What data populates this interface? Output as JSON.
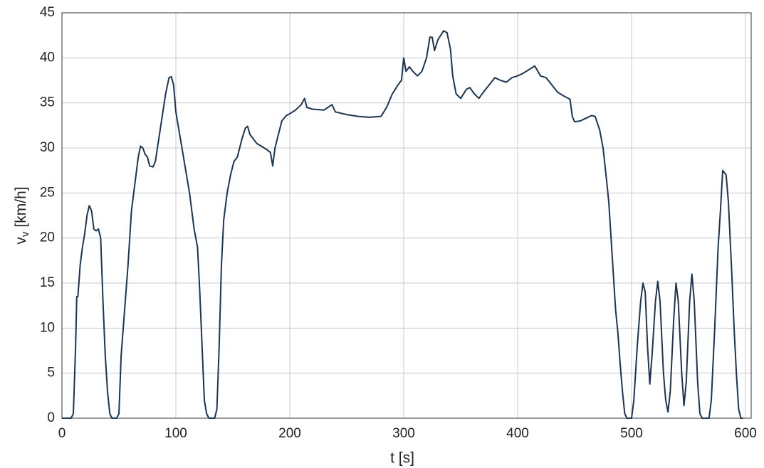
{
  "chart_data": {
    "type": "line",
    "xlabel": "t [s]",
    "ylabel": {
      "symbol": "v",
      "subscript": "v",
      "unit": "[km/h]"
    },
    "color": "#1b3552",
    "grid": true,
    "xlim": [
      0,
      605
    ],
    "ylim": [
      0,
      45
    ],
    "xticks": [
      0,
      100,
      200,
      300,
      400,
      500,
      600
    ],
    "yticks": [
      0,
      5,
      10,
      15,
      20,
      25,
      30,
      35,
      40,
      45
    ],
    "x": [
      0,
      8,
      10,
      12,
      13,
      14,
      16,
      18,
      20,
      22,
      24,
      26,
      28,
      30,
      32,
      34,
      36,
      38,
      40,
      42,
      44,
      48,
      50,
      52,
      55,
      58,
      61,
      64,
      67,
      69,
      71,
      73,
      75,
      77,
      80,
      82,
      85,
      88,
      91,
      94,
      96,
      98,
      100,
      104,
      108,
      112,
      116,
      119,
      121,
      123,
      125,
      127,
      129,
      134,
      136,
      138,
      140,
      142,
      145,
      148,
      151,
      154,
      156,
      158,
      161,
      163,
      165,
      168,
      171,
      175,
      180,
      183,
      185,
      187,
      190,
      193,
      197,
      200,
      205,
      210,
      213,
      215,
      220,
      230,
      237,
      240,
      250,
      260,
      270,
      280,
      285,
      290,
      295,
      298,
      300,
      302,
      305,
      308,
      312,
      316,
      320,
      323,
      325,
      327,
      330,
      335,
      338,
      341,
      343,
      346,
      350,
      355,
      358,
      362,
      366,
      370,
      375,
      380,
      385,
      390,
      395,
      400,
      405,
      410,
      415,
      420,
      425,
      430,
      435,
      440,
      446,
      448,
      450,
      455,
      460,
      465,
      468,
      472,
      475,
      478,
      480,
      483,
      486,
      488,
      490,
      492,
      494,
      496,
      500,
      502,
      505,
      508,
      510,
      512,
      514,
      516,
      518,
      521,
      523,
      525,
      528,
      530,
      532,
      534,
      537,
      539,
      541,
      544,
      546,
      548,
      551,
      553,
      555,
      558,
      560,
      562,
      568,
      570,
      573,
      576,
      578,
      580,
      583,
      585,
      588,
      590,
      592,
      594,
      596,
      598
    ],
    "values": [
      0,
      0,
      0.5,
      8,
      13.5,
      13.5,
      17,
      19,
      20.5,
      22.5,
      23.6,
      23,
      21,
      20.8,
      21,
      20,
      13,
      7,
      3,
      0.5,
      0,
      0,
      0.5,
      7,
      12,
      17,
      23,
      26,
      29,
      30.2,
      30,
      29.3,
      29,
      28,
      27.9,
      28.5,
      31,
      33.5,
      36,
      37.8,
      37.9,
      37,
      34,
      31,
      28,
      25,
      21,
      19,
      14,
      8,
      2,
      0.5,
      0,
      0,
      1,
      8,
      17,
      22,
      25,
      27,
      28.5,
      29,
      30,
      31,
      32.2,
      32.4,
      31.5,
      31,
      30.5,
      30.2,
      29.8,
      29.5,
      28,
      30,
      31.5,
      33,
      33.6,
      33.8,
      34.2,
      34.8,
      35.5,
      34.5,
      34.3,
      34.2,
      34.8,
      34,
      33.7,
      33.5,
      33.4,
      33.5,
      34.5,
      36,
      37,
      37.5,
      40,
      38.5,
      39,
      38.5,
      38,
      38.5,
      40,
      42.3,
      42.3,
      40.8,
      42,
      43,
      42.8,
      41,
      38,
      36,
      35.5,
      36.5,
      36.7,
      36,
      35.5,
      36.2,
      37,
      37.8,
      37.5,
      37.3,
      37.8,
      38,
      38.3,
      38.7,
      39.1,
      38,
      37.8,
      37,
      36.2,
      35.8,
      35.4,
      33.5,
      32.9,
      33,
      33.3,
      33.6,
      33.5,
      32,
      30,
      26.5,
      24,
      18,
      12,
      9.5,
      6,
      3,
      0.5,
      0,
      0,
      2,
      8,
      13,
      15,
      14,
      8,
      3.8,
      7,
      13,
      15.2,
      13,
      5,
      2,
      0.7,
      3,
      11,
      15,
      13,
      5,
      1.4,
      4,
      13,
      16,
      13,
      4,
      0.5,
      0,
      0,
      2,
      10,
      19,
      23,
      27.5,
      27,
      24,
      16,
      10,
      5,
      1,
      0,
      0
    ]
  }
}
